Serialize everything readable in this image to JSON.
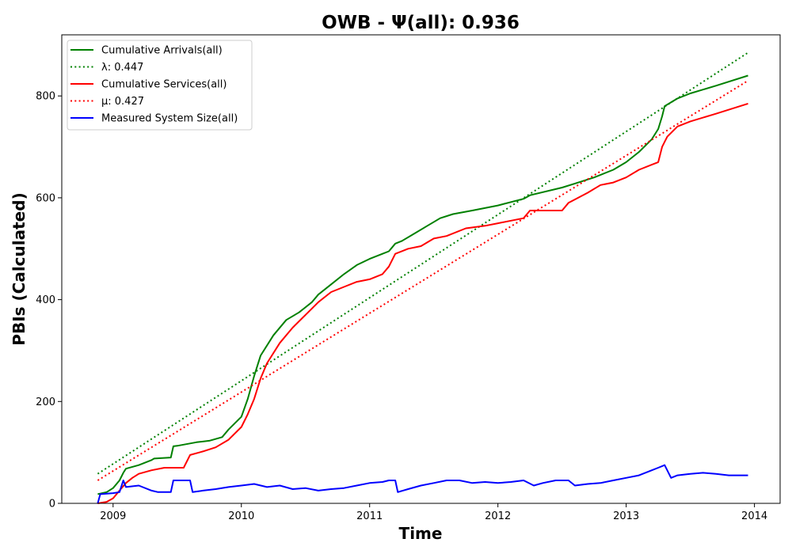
{
  "chart_data": {
    "type": "line",
    "title": "OWB -  Ψ(all): 0.936",
    "xlabel": "Time",
    "ylabel": "PBIs (Calculated)",
    "xlim": [
      2008.6,
      2014.2
    ],
    "ylim": [
      0,
      920
    ],
    "xticks": [
      2009,
      2010,
      2011,
      2012,
      2013,
      2014
    ],
    "yticks": [
      0,
      200,
      400,
      600,
      800
    ],
    "grid": false,
    "legend_position": "upper-left",
    "series": [
      {
        "name": "Cumulative Arrivals(all)",
        "style": "solid",
        "color": "#008000",
        "x": [
          2008.88,
          2008.95,
          2009.0,
          2009.05,
          2009.08,
          2009.1,
          2009.2,
          2009.3,
          2009.32,
          2009.45,
          2009.47,
          2009.5,
          2009.65,
          2009.75,
          2009.85,
          2009.9,
          2010.0,
          2010.05,
          2010.1,
          2010.15,
          2010.25,
          2010.35,
          2010.45,
          2010.55,
          2010.6,
          2010.7,
          2010.8,
          2010.9,
          2011.0,
          2011.1,
          2011.15,
          2011.2,
          2011.25,
          2011.35,
          2011.45,
          2011.55,
          2011.65,
          2011.8,
          2012.0,
          2012.2,
          2012.25,
          2012.5,
          2012.6,
          2012.75,
          2012.9,
          2013.0,
          2013.1,
          2013.2,
          2013.25,
          2013.28,
          2013.3,
          2013.4,
          2013.5,
          2013.7,
          2013.95
        ],
        "y": [
          18,
          22,
          30,
          45,
          60,
          68,
          75,
          85,
          88,
          90,
          112,
          113,
          120,
          123,
          130,
          145,
          170,
          205,
          250,
          290,
          330,
          360,
          375,
          395,
          410,
          430,
          450,
          468,
          480,
          490,
          495,
          510,
          515,
          530,
          545,
          560,
          568,
          575,
          585,
          598,
          605,
          620,
          628,
          640,
          655,
          670,
          690,
          715,
          735,
          760,
          780,
          795,
          805,
          820,
          840
        ]
      },
      {
        "name": "λ: 0.447",
        "style": "dotted",
        "color": "#008000",
        "x": [
          2008.88,
          2013.95
        ],
        "y": [
          58,
          885
        ]
      },
      {
        "name": "Cumulative Services(all)",
        "style": "solid",
        "color": "#ff0000",
        "x": [
          2008.88,
          2008.95,
          2009.0,
          2009.05,
          2009.1,
          2009.15,
          2009.2,
          2009.3,
          2009.4,
          2009.55,
          2009.6,
          2009.7,
          2009.8,
          2009.9,
          2010.0,
          2010.05,
          2010.1,
          2010.15,
          2010.2,
          2010.3,
          2010.4,
          2010.5,
          2010.6,
          2010.7,
          2010.8,
          2010.9,
          2011.0,
          2011.1,
          2011.15,
          2011.2,
          2011.3,
          2011.4,
          2011.5,
          2011.6,
          2011.75,
          2011.9,
          2012.0,
          2012.2,
          2012.25,
          2012.5,
          2012.55,
          2012.7,
          2012.8,
          2012.9,
          2013.0,
          2013.1,
          2013.2,
          2013.25,
          2013.28,
          2013.32,
          2013.4,
          2013.5,
          2013.7,
          2013.95
        ],
        "y": [
          0,
          3,
          10,
          25,
          40,
          50,
          58,
          65,
          70,
          70,
          95,
          102,
          110,
          125,
          150,
          175,
          205,
          245,
          275,
          315,
          345,
          370,
          395,
          415,
          425,
          435,
          440,
          450,
          465,
          490,
          500,
          505,
          520,
          525,
          540,
          545,
          550,
          560,
          575,
          575,
          590,
          610,
          625,
          630,
          640,
          655,
          665,
          670,
          700,
          720,
          740,
          750,
          765,
          785
        ]
      },
      {
        "name": "μ: 0.427",
        "style": "dotted",
        "color": "#ff0000",
        "x": [
          2008.88,
          2013.95
        ],
        "y": [
          45,
          830
        ]
      },
      {
        "name": "Measured System Size(all)",
        "style": "solid",
        "color": "#0000ff",
        "x": [
          2008.88,
          2008.9,
          2009.0,
          2009.05,
          2009.08,
          2009.1,
          2009.2,
          2009.3,
          2009.35,
          2009.45,
          2009.47,
          2009.55,
          2009.6,
          2009.62,
          2009.7,
          2009.8,
          2009.9,
          2010.0,
          2010.1,
          2010.2,
          2010.3,
          2010.4,
          2010.5,
          2010.6,
          2010.7,
          2010.8,
          2010.9,
          2011.0,
          2011.1,
          2011.15,
          2011.2,
          2011.22,
          2011.3,
          2011.4,
          2011.5,
          2011.6,
          2011.7,
          2011.8,
          2011.9,
          2012.0,
          2012.1,
          2012.2,
          2012.28,
          2012.35,
          2012.45,
          2012.55,
          2012.6,
          2012.7,
          2012.8,
          2012.9,
          2013.0,
          2013.1,
          2013.2,
          2013.25,
          2013.3,
          2013.35,
          2013.4,
          2013.5,
          2013.6,
          2013.7,
          2013.8,
          2013.95
        ],
        "y": [
          0,
          18,
          20,
          22,
          45,
          32,
          35,
          25,
          22,
          22,
          45,
          45,
          45,
          22,
          25,
          28,
          32,
          35,
          38,
          32,
          35,
          28,
          30,
          25,
          28,
          30,
          35,
          40,
          42,
          45,
          45,
          22,
          28,
          35,
          40,
          45,
          45,
          40,
          42,
          40,
          42,
          45,
          35,
          40,
          45,
          45,
          35,
          38,
          40,
          45,
          50,
          55,
          65,
          70,
          75,
          50,
          55,
          58,
          60,
          58,
          55,
          55
        ]
      }
    ]
  }
}
